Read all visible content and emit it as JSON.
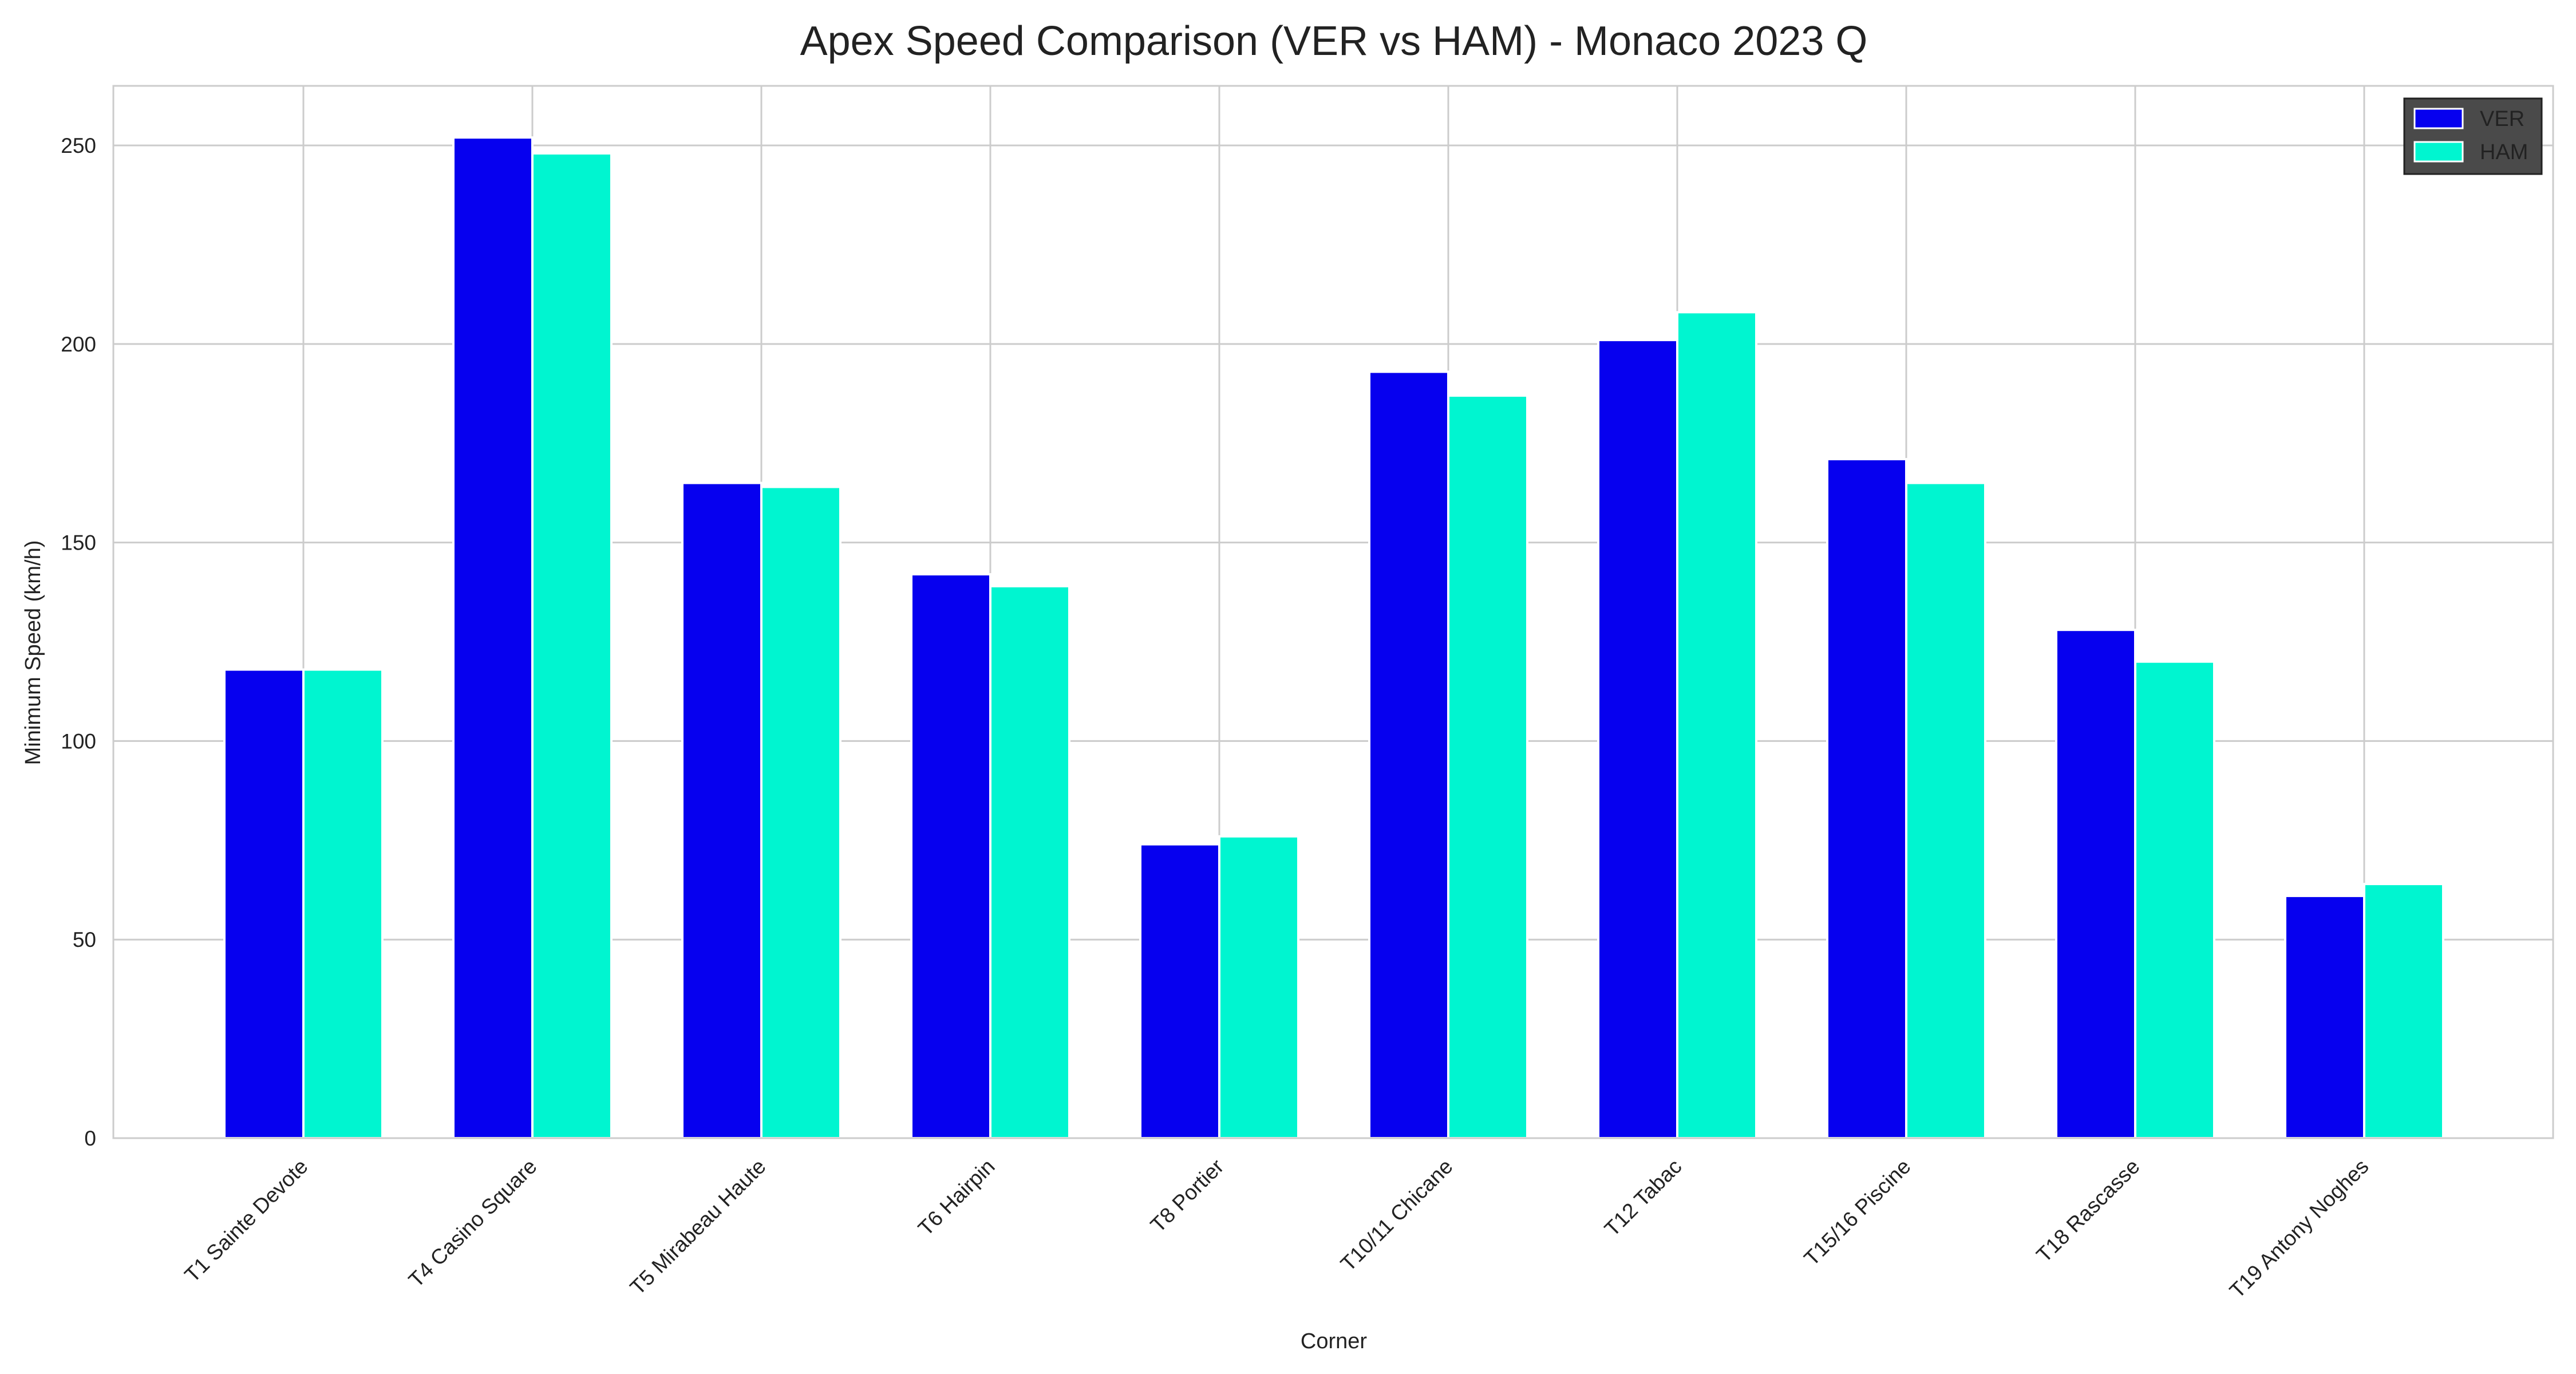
{
  "chart_data": {
    "type": "bar",
    "title": "Apex Speed Comparison (VER vs HAM) - Monaco 2023 Q",
    "xlabel": "Corner",
    "ylabel": "Minimum Speed (km/h)",
    "ylim": [
      0,
      265
    ],
    "yticks": [
      0,
      50,
      100,
      150,
      200,
      250
    ],
    "categories": [
      "T1 Sainte Devote",
      "T4 Casino Square",
      "T5 Mirabeau Haute",
      "T6 Hairpin",
      "T8 Portier",
      "T10/11 Chicane",
      "T12 Tabac",
      "T15/16 Piscine",
      "T18 Rascasse",
      "T19 Antony Noghes"
    ],
    "series": [
      {
        "name": "VER",
        "color": "#0600EF",
        "values": [
          118,
          252,
          165,
          142,
          74,
          193,
          201,
          171,
          128,
          61
        ]
      },
      {
        "name": "HAM",
        "color": "#00F5D0",
        "values": [
          118,
          248,
          164,
          139,
          76,
          187,
          208,
          165,
          120,
          64
        ]
      }
    ],
    "grid": true,
    "legend_position": "top-right",
    "legend_background": "#4a4a4a",
    "axis_color": "#cccccc",
    "grid_color": "#cccccc"
  }
}
